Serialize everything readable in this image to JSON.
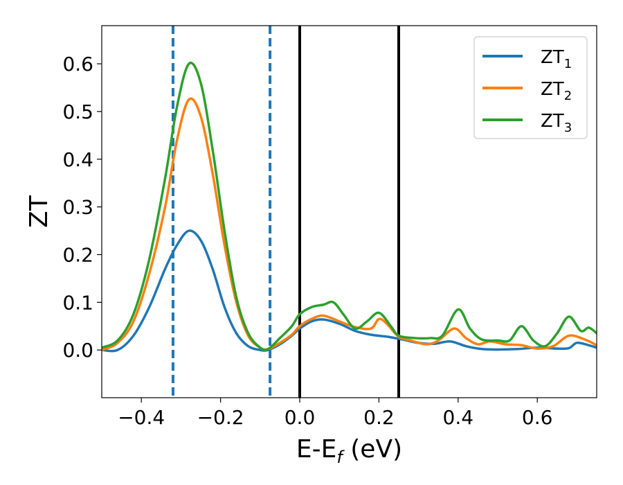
{
  "chart_data": {
    "type": "line",
    "xlabel": "E-E",
    "xlabel_sub": "f",
    "xlabel_unit": " (eV)",
    "ylabel": "ZT",
    "xlim": [
      -0.5,
      0.75
    ],
    "ylim": [
      -0.1,
      0.68
    ],
    "x_ticks": [
      -0.4,
      -0.2,
      0.0,
      0.2,
      0.4,
      0.6
    ],
    "x_tick_labels": [
      "−0.4",
      "−0.2",
      "0.0",
      "0.2",
      "0.4",
      "0.6"
    ],
    "y_ticks": [
      0.0,
      0.1,
      0.2,
      0.3,
      0.4,
      0.5,
      0.6
    ],
    "y_tick_labels": [
      "0.0",
      "0.1",
      "0.2",
      "0.3",
      "0.4",
      "0.5",
      "0.6"
    ],
    "grid": false,
    "legend_position": "top-right",
    "vertical_lines": [
      {
        "x": -0.32,
        "style": "dashed",
        "color": "#1f77b4"
      },
      {
        "x": -0.075,
        "style": "dashed",
        "color": "#1f77b4"
      },
      {
        "x": 0.0,
        "style": "solid",
        "color": "#000000"
      },
      {
        "x": 0.25,
        "style": "solid",
        "color": "#000000"
      }
    ],
    "series": [
      {
        "name": "ZT",
        "name_sub": "1",
        "color": "#1f77b4",
        "points": [
          [
            -0.5,
            0.0
          ],
          [
            -0.46,
            0.0
          ],
          [
            -0.42,
            0.03
          ],
          [
            -0.38,
            0.09
          ],
          [
            -0.34,
            0.17
          ],
          [
            -0.31,
            0.22
          ],
          [
            -0.28,
            0.25
          ],
          [
            -0.25,
            0.23
          ],
          [
            -0.22,
            0.17
          ],
          [
            -0.19,
            0.09
          ],
          [
            -0.16,
            0.035
          ],
          [
            -0.13,
            0.008
          ],
          [
            -0.1,
            0.0
          ],
          [
            -0.08,
            0.0
          ],
          [
            -0.05,
            0.012
          ],
          [
            -0.02,
            0.03
          ],
          [
            0.0,
            0.045
          ],
          [
            0.03,
            0.06
          ],
          [
            0.06,
            0.064
          ],
          [
            0.1,
            0.055
          ],
          [
            0.14,
            0.04
          ],
          [
            0.18,
            0.032
          ],
          [
            0.22,
            0.028
          ],
          [
            0.26,
            0.022
          ],
          [
            0.3,
            0.015
          ],
          [
            0.34,
            0.013
          ],
          [
            0.38,
            0.018
          ],
          [
            0.42,
            0.008
          ],
          [
            0.46,
            0.002
          ],
          [
            0.5,
            0.001
          ],
          [
            0.55,
            0.002
          ],
          [
            0.6,
            0.005
          ],
          [
            0.65,
            0.003
          ],
          [
            0.68,
            0.004
          ],
          [
            0.7,
            0.015
          ],
          [
            0.73,
            0.01
          ],
          [
            0.75,
            0.005
          ]
        ]
      },
      {
        "name": "ZT",
        "name_sub": "2",
        "color": "#ff7f0e",
        "points": [
          [
            -0.5,
            0.0
          ],
          [
            -0.46,
            0.015
          ],
          [
            -0.42,
            0.06
          ],
          [
            -0.38,
            0.16
          ],
          [
            -0.34,
            0.3
          ],
          [
            -0.31,
            0.44
          ],
          [
            -0.28,
            0.525
          ],
          [
            -0.25,
            0.49
          ],
          [
            -0.22,
            0.37
          ],
          [
            -0.19,
            0.22
          ],
          [
            -0.16,
            0.1
          ],
          [
            -0.13,
            0.03
          ],
          [
            -0.1,
            0.005
          ],
          [
            -0.08,
            0.002
          ],
          [
            -0.05,
            0.015
          ],
          [
            -0.02,
            0.032
          ],
          [
            0.0,
            0.05
          ],
          [
            0.03,
            0.065
          ],
          [
            0.06,
            0.072
          ],
          [
            0.1,
            0.06
          ],
          [
            0.14,
            0.048
          ],
          [
            0.18,
            0.045
          ],
          [
            0.2,
            0.065
          ],
          [
            0.22,
            0.055
          ],
          [
            0.25,
            0.028
          ],
          [
            0.28,
            0.02
          ],
          [
            0.32,
            0.012
          ],
          [
            0.35,
            0.02
          ],
          [
            0.39,
            0.045
          ],
          [
            0.42,
            0.025
          ],
          [
            0.45,
            0.012
          ],
          [
            0.48,
            0.018
          ],
          [
            0.52,
            0.012
          ],
          [
            0.56,
            0.01
          ],
          [
            0.6,
            0.003
          ],
          [
            0.64,
            0.008
          ],
          [
            0.68,
            0.03
          ],
          [
            0.72,
            0.022
          ],
          [
            0.75,
            0.01
          ]
        ]
      },
      {
        "name": "ZT",
        "name_sub": "3",
        "color": "#2ca02c",
        "points": [
          [
            -0.5,
            0.005
          ],
          [
            -0.46,
            0.02
          ],
          [
            -0.42,
            0.075
          ],
          [
            -0.38,
            0.19
          ],
          [
            -0.34,
            0.36
          ],
          [
            -0.31,
            0.51
          ],
          [
            -0.28,
            0.6
          ],
          [
            -0.25,
            0.56
          ],
          [
            -0.22,
            0.42
          ],
          [
            -0.19,
            0.25
          ],
          [
            -0.16,
            0.11
          ],
          [
            -0.13,
            0.035
          ],
          [
            -0.1,
            0.005
          ],
          [
            -0.08,
            0.002
          ],
          [
            -0.05,
            0.025
          ],
          [
            -0.02,
            0.05
          ],
          [
            0.0,
            0.075
          ],
          [
            0.03,
            0.09
          ],
          [
            0.06,
            0.095
          ],
          [
            0.085,
            0.1
          ],
          [
            0.11,
            0.075
          ],
          [
            0.14,
            0.045
          ],
          [
            0.17,
            0.06
          ],
          [
            0.2,
            0.078
          ],
          [
            0.23,
            0.05
          ],
          [
            0.25,
            0.03
          ],
          [
            0.29,
            0.025
          ],
          [
            0.33,
            0.025
          ],
          [
            0.36,
            0.03
          ],
          [
            0.4,
            0.085
          ],
          [
            0.43,
            0.045
          ],
          [
            0.46,
            0.022
          ],
          [
            0.5,
            0.02
          ],
          [
            0.53,
            0.02
          ],
          [
            0.56,
            0.05
          ],
          [
            0.59,
            0.02
          ],
          [
            0.62,
            0.008
          ],
          [
            0.65,
            0.035
          ],
          [
            0.68,
            0.07
          ],
          [
            0.71,
            0.04
          ],
          [
            0.73,
            0.047
          ],
          [
            0.75,
            0.035
          ]
        ]
      }
    ]
  }
}
